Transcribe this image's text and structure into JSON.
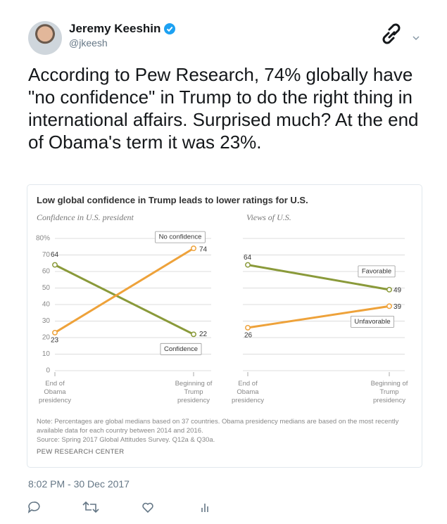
{
  "tweet": {
    "author": "Jeremy Keeshin",
    "handle": "@jkeesh",
    "text": "According to Pew Research, 74% globally have \"no confidence\" in Trump to do the right thing in international affairs. Surprised much? At the end of Obama's term it was 23%.",
    "timestamp": "8:02 PM - 30 Dec 2017"
  },
  "figure": {
    "title": "Low global confidence in Trump leads to lower ratings for U.S.",
    "note": "Note: Percentages are global medians based on 37 countries. Obama presidency medians are based on the most recently available data for each country between 2014 and 2016.",
    "source": "Source: Spring 2017 Global Attitudes Survey. Q12a & Q30a.",
    "credit": "PEW RESEARCH CENTER"
  },
  "chart_data": [
    {
      "type": "line",
      "subtitle": "Confidence in U.S. president",
      "categories": [
        "End of Obama presidency",
        "Beginning of Trump presidency"
      ],
      "series": [
        {
          "name": "Confidence",
          "color": "#8a9a3a",
          "values": [
            64,
            22
          ]
        },
        {
          "name": "No confidence",
          "color": "#eea23a",
          "values": [
            23,
            74
          ]
        }
      ],
      "ylim": [
        0,
        80
      ],
      "yticks": [
        0,
        10,
        20,
        30,
        40,
        50,
        60,
        70,
        {
          "value": 80,
          "label": "80%"
        }
      ],
      "grid": true
    },
    {
      "type": "line",
      "subtitle": "Views of U.S.",
      "categories": [
        "End of Obama presidency",
        "Beginning of Trump presidency"
      ],
      "series": [
        {
          "name": "Favorable",
          "color": "#8a9a3a",
          "values": [
            64,
            49
          ]
        },
        {
          "name": "Unfavorable",
          "color": "#eea23a",
          "values": [
            26,
            39
          ]
        }
      ],
      "ylim": [
        0,
        80
      ],
      "grid": true
    }
  ]
}
